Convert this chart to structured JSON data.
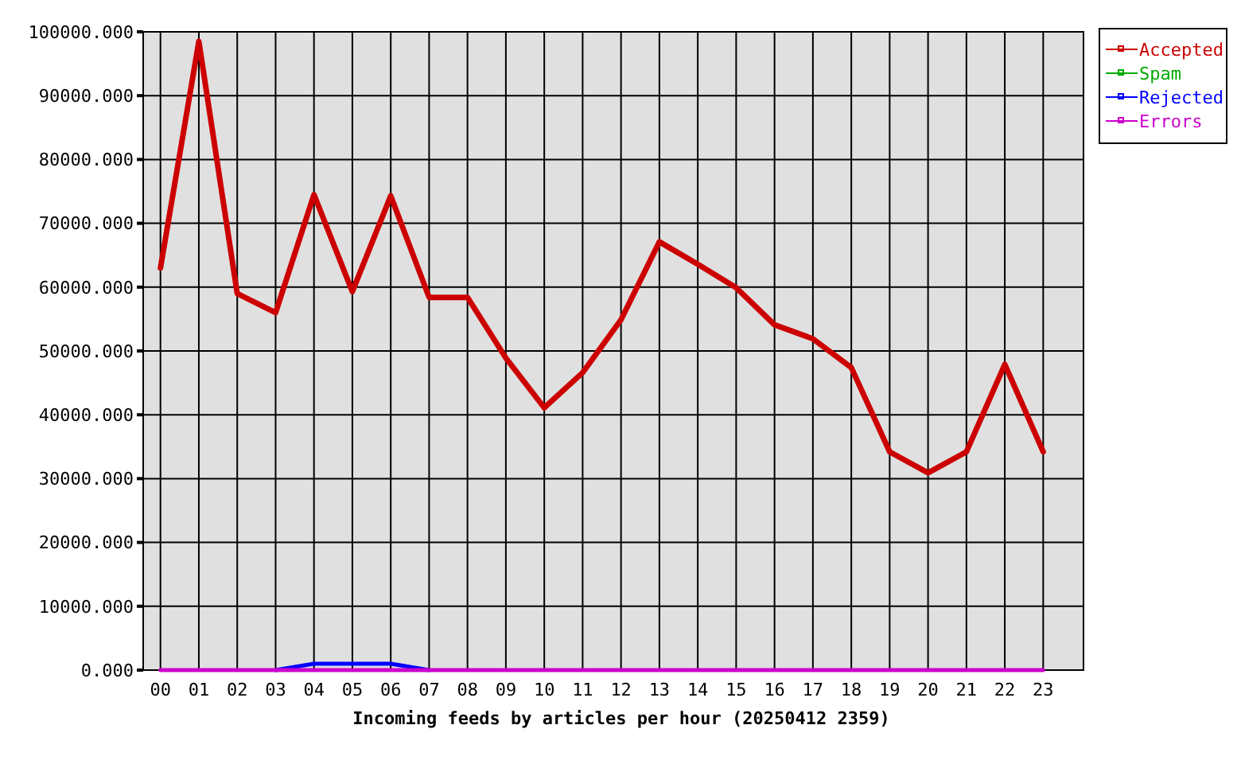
{
  "chart_data": {
    "type": "line",
    "xlabel": "Incoming feeds by articles per hour (20250412 2359)",
    "categories": [
      "00",
      "01",
      "02",
      "03",
      "04",
      "05",
      "06",
      "07",
      "08",
      "09",
      "10",
      "11",
      "12",
      "13",
      "14",
      "15",
      "16",
      "17",
      "18",
      "19",
      "20",
      "21",
      "22",
      "23"
    ],
    "series": [
      {
        "name": "Accepted",
        "color": "#cc0000",
        "values": [
          63000,
          98500,
          59000,
          56000,
          74500,
          59300,
          74300,
          58400,
          58400,
          48900,
          41100,
          46600,
          54900,
          67100,
          63600,
          59900,
          54100,
          51900,
          47400,
          34200,
          30900,
          34200,
          47900,
          34200
        ]
      },
      {
        "name": "Spam",
        "color": "#00aa00",
        "values": [
          null,
          null,
          null,
          null,
          null,
          null,
          null,
          null,
          null,
          null,
          null,
          null,
          null,
          null,
          null,
          null,
          null,
          null,
          null,
          null,
          null,
          null,
          null,
          null
        ]
      },
      {
        "name": "Rejected",
        "color": "#0000ff",
        "values": [
          null,
          null,
          null,
          0,
          1000,
          1000,
          1000,
          0,
          null,
          null,
          null,
          null,
          null,
          null,
          null,
          null,
          null,
          null,
          null,
          null,
          null,
          null,
          null,
          null
        ]
      },
      {
        "name": "Errors",
        "color": "#cc00cc",
        "values": [
          0,
          0,
          0,
          0,
          0,
          0,
          0,
          0,
          0,
          0,
          0,
          0,
          0,
          0,
          0,
          0,
          0,
          0,
          0,
          0,
          0,
          0,
          0,
          0
        ]
      }
    ],
    "ylim": [
      0,
      100000
    ],
    "yticks": [
      {
        "value": 0,
        "label": "0.000"
      },
      {
        "value": 10000,
        "label": "10000.000"
      },
      {
        "value": 20000,
        "label": "20000.000"
      },
      {
        "value": 30000,
        "label": "30000.000"
      },
      {
        "value": 40000,
        "label": "40000.000"
      },
      {
        "value": 50000,
        "label": "50000.000"
      },
      {
        "value": 60000,
        "label": "60000.000"
      },
      {
        "value": 70000,
        "label": "70000.000"
      },
      {
        "value": 80000,
        "label": "80000.000"
      },
      {
        "value": 90000,
        "label": "90000.000"
      },
      {
        "value": 100000,
        "label": "100000.000"
      }
    ],
    "grid": true,
    "legend": "top right"
  }
}
